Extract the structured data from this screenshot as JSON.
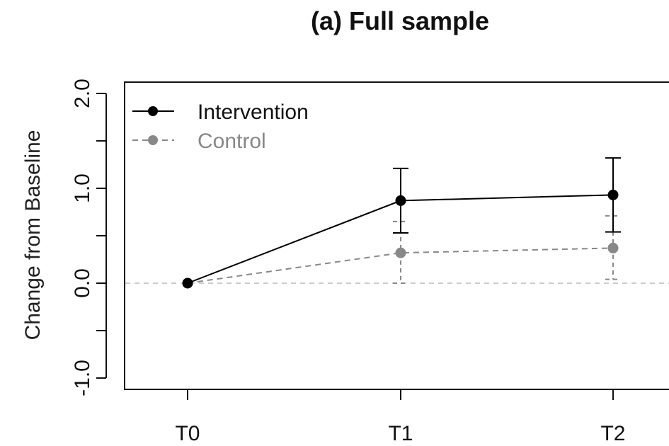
{
  "chart_data": {
    "type": "line",
    "title": "(a) Full sample",
    "xlabel": "",
    "ylabel": "Change from Baseline",
    "categories": [
      "T0",
      "T1",
      "T2"
    ],
    "y_tick_labels": [
      "-1.0",
      "0.0",
      "1.0",
      "2.0"
    ],
    "ylim": [
      -1.1,
      2.0
    ],
    "reference_line_y": 0.0,
    "legend_position": "top-left",
    "series": [
      {
        "name": "Intervention",
        "values": [
          0.0,
          0.87,
          0.93
        ],
        "ci_lower": [
          null,
          0.53,
          0.54
        ],
        "ci_upper": [
          null,
          1.21,
          1.32
        ],
        "color": "#000000",
        "line_style": "solid"
      },
      {
        "name": "Control",
        "values": [
          0.0,
          0.32,
          0.37
        ],
        "ci_lower": [
          null,
          0.0,
          0.04
        ],
        "ci_upper": [
          null,
          0.65,
          0.71
        ],
        "color": "#888888",
        "line_style": "dashed"
      }
    ]
  }
}
